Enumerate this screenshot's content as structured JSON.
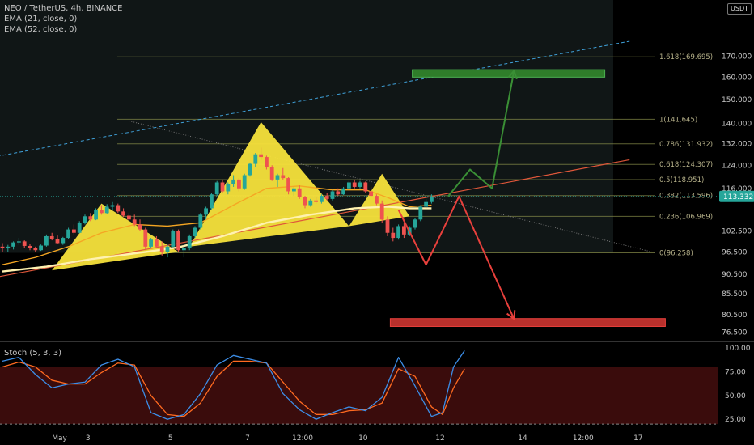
{
  "legend": {
    "symbol": "NEO / TetherUS, 4h, BINANCE",
    "ema1": "EMA (21, close, 0)",
    "ema2": "EMA (52, close, 0)"
  },
  "currency": "USDT",
  "stoch_title": "Stoch (5, 3, 3)",
  "colors": {
    "up": "#26a69a",
    "down": "#ef5350",
    "pattern": "#f7e13b",
    "ema21": "#f5a623",
    "ema52": "#fff2b0",
    "arrow_up": "#3a8f35",
    "arrow_down": "#e8403c",
    "trendline": "#e0573a",
    "channel": "#3fa0d8",
    "fib": "#8a8f4a",
    "stoch_k": "#3c8ee8",
    "stoch_d": "#ff6a20",
    "stoch_band": "#3a0c0c"
  },
  "chart_data": [
    {
      "type": "line",
      "title": "NEO / TetherUS, 4h, BINANCE",
      "scale": "log",
      "ylim": [
        74.5,
        200
      ],
      "y_ticks": [
        {
          "v": 170,
          "label": "170.000"
        },
        {
          "v": 160,
          "label": "160.000"
        },
        {
          "v": 150,
          "label": "150.000"
        },
        {
          "v": 140,
          "label": "140.000"
        },
        {
          "v": 132,
          "label": "132.000"
        },
        {
          "v": 124,
          "label": "124.000"
        },
        {
          "v": 116,
          "label": "116.000"
        },
        {
          "v": 102.5,
          "label": "102.500"
        },
        {
          "v": 96.5,
          "label": "96.500"
        },
        {
          "v": 90.5,
          "label": "90.500"
        },
        {
          "v": 85.5,
          "label": "85.500"
        },
        {
          "v": 80.5,
          "label": "80.500"
        },
        {
          "v": 76.5,
          "label": "76.500"
        }
      ],
      "x_ticks": [
        "May",
        "3",
        "5",
        "7",
        "12:00",
        "10",
        "12",
        "14",
        "12:00",
        "17"
      ],
      "last_price": {
        "value": 113.332,
        "label": "113.332"
      },
      "fib_levels": [
        {
          "value": 169.695,
          "label": "1.618(169.695)"
        },
        {
          "value": 141.645,
          "label": "1(141.645)"
        },
        {
          "value": 131.932,
          "label": "0.786(131.932)"
        },
        {
          "value": 124.307,
          "label": "0.618(124.307)"
        },
        {
          "value": 118.951,
          "label": "0.5(118.951)"
        },
        {
          "value": 113.596,
          "label": "0.382(113.596)"
        },
        {
          "value": 106.969,
          "label": "0.236(106.969)"
        },
        {
          "value": 96.258,
          "label": "0(96.258)"
        }
      ],
      "candles": [
        [
          98.0,
          99.0,
          96.5,
          97.5
        ],
        [
          97.5,
          98.5,
          96.6,
          98.0
        ],
        [
          98.0,
          99.5,
          97.2,
          99.2
        ],
        [
          99.2,
          100.5,
          98.5,
          99.5
        ],
        [
          99.5,
          99.8,
          97.5,
          98.2
        ],
        [
          98.2,
          98.8,
          97.0,
          97.6
        ],
        [
          97.6,
          98.0,
          96.5,
          97.0
        ],
        [
          97.0,
          98.6,
          96.8,
          98.3
        ],
        [
          98.3,
          101.5,
          98.0,
          101.0
        ],
        [
          101.0,
          102.0,
          99.8,
          100.2
        ],
        [
          100.2,
          101.2,
          98.8,
          99.0
        ],
        [
          99.0,
          100.8,
          98.5,
          100.5
        ],
        [
          100.5,
          103.5,
          100.2,
          103.0
        ],
        [
          103.0,
          104.5,
          101.5,
          102.0
        ],
        [
          102.0,
          105.5,
          101.8,
          105.0
        ],
        [
          105.0,
          107.5,
          104.5,
          107.0
        ],
        [
          107.0,
          108.0,
          105.5,
          106.0
        ],
        [
          106.0,
          109.5,
          105.8,
          109.0
        ],
        [
          109.0,
          110.5,
          107.5,
          108.0
        ],
        [
          108.0,
          110.8,
          107.8,
          110.0
        ],
        [
          110.0,
          111.5,
          109.0,
          110.5
        ],
        [
          110.5,
          111.0,
          108.0,
          108.5
        ],
        [
          108.5,
          109.5,
          106.8,
          107.2
        ],
        [
          107.2,
          108.0,
          105.5,
          106.0
        ],
        [
          106.0,
          107.5,
          104.0,
          104.5
        ],
        [
          104.5,
          106.0,
          102.5,
          103.0
        ],
        [
          103.0,
          103.5,
          97.0,
          98.0
        ],
        [
          98.0,
          100.5,
          97.5,
          100.0
        ],
        [
          100.0,
          101.0,
          97.5,
          98.0
        ],
        [
          98.0,
          99.5,
          95.5,
          96.5
        ],
        [
          96.5,
          98.5,
          95.0,
          98.0
        ],
        [
          98.0,
          103.0,
          97.8,
          102.5
        ],
        [
          102.5,
          103.0,
          96.5,
          97.0
        ],
        [
          97.0,
          98.5,
          95.0,
          97.5
        ],
        [
          97.5,
          101.5,
          97.0,
          101.0
        ],
        [
          101.0,
          104.0,
          100.5,
          103.5
        ],
        [
          103.5,
          108.0,
          103.0,
          107.5
        ],
        [
          107.5,
          110.0,
          106.0,
          109.5
        ],
        [
          109.5,
          114.5,
          109.0,
          114.0
        ],
        [
          114.0,
          118.5,
          113.5,
          118.0
        ],
        [
          118.0,
          119.0,
          114.5,
          115.0
        ],
        [
          115.0,
          118.0,
          114.0,
          117.5
        ],
        [
          117.5,
          120.5,
          116.5,
          119.0
        ],
        [
          119.0,
          119.5,
          115.0,
          116.0
        ],
        [
          116.0,
          121.0,
          115.5,
          120.5
        ],
        [
          120.5,
          125.0,
          120.0,
          124.5
        ],
        [
          124.5,
          128.5,
          123.5,
          128.0
        ],
        [
          128.0,
          130.5,
          126.0,
          127.0
        ],
        [
          127.0,
          127.5,
          122.5,
          123.5
        ],
        [
          123.5,
          124.0,
          118.5,
          119.0
        ],
        [
          119.0,
          121.0,
          116.5,
          120.5
        ],
        [
          120.5,
          123.0,
          119.0,
          119.5
        ],
        [
          119.5,
          119.8,
          114.0,
          115.0
        ],
        [
          115.0,
          116.5,
          113.5,
          116.0
        ],
        [
          116.0,
          117.0,
          112.5,
          113.0
        ],
        [
          113.0,
          113.5,
          109.5,
          110.5
        ],
        [
          110.5,
          112.5,
          110.0,
          112.0
        ],
        [
          112.0,
          113.0,
          111.0,
          111.5
        ],
        [
          111.5,
          114.0,
          111.0,
          113.5
        ],
        [
          113.5,
          114.5,
          112.0,
          112.5
        ],
        [
          112.5,
          115.5,
          112.0,
          115.0
        ],
        [
          115.0,
          116.0,
          113.5,
          114.0
        ],
        [
          114.0,
          116.5,
          113.8,
          116.0
        ],
        [
          116.0,
          118.5,
          115.5,
          118.0
        ],
        [
          118.0,
          119.0,
          116.0,
          116.5
        ],
        [
          116.5,
          118.5,
          116.0,
          118.0
        ],
        [
          118.0,
          118.3,
          114.5,
          115.0
        ],
        [
          115.0,
          116.5,
          113.0,
          113.5
        ],
        [
          113.5,
          114.0,
          110.5,
          111.0
        ],
        [
          111.0,
          112.0,
          105.0,
          106.0
        ],
        [
          106.0,
          107.0,
          101.0,
          102.0
        ],
        [
          102.0,
          103.5,
          99.5,
          100.5
        ],
        [
          100.5,
          104.5,
          100.0,
          104.0
        ],
        [
          104.0,
          105.0,
          100.5,
          101.5
        ],
        [
          101.5,
          104.0,
          101.0,
          103.5
        ],
        [
          103.5,
          106.5,
          103.0,
          106.0
        ],
        [
          106.0,
          110.5,
          105.5,
          110.0
        ],
        [
          110.0,
          112.5,
          109.5,
          111.5
        ],
        [
          111.5,
          114.0,
          111.0,
          113.332
        ]
      ],
      "ema21": [
        [
          0,
          93.0
        ],
        [
          6,
          95.0
        ],
        [
          12,
          98.0
        ],
        [
          18,
          102.0
        ],
        [
          24,
          104.5
        ],
        [
          30,
          104.0
        ],
        [
          36,
          105.0
        ],
        [
          42,
          110.5
        ],
        [
          48,
          116.0
        ],
        [
          54,
          116.8
        ],
        [
          60,
          115.5
        ],
        [
          66,
          115.5
        ],
        [
          70,
          113.0
        ],
        [
          74,
          110.0
        ],
        [
          78,
          110.5
        ]
      ],
      "ema52": [
        [
          0,
          91.2
        ],
        [
          8,
          92.5
        ],
        [
          16,
          94.5
        ],
        [
          26,
          96.5
        ],
        [
          32,
          97.8
        ],
        [
          40,
          101.0
        ],
        [
          48,
          105.0
        ],
        [
          56,
          107.5
        ],
        [
          64,
          109.5
        ],
        [
          70,
          110.0
        ],
        [
          74,
          109.5
        ],
        [
          78,
          109.5
        ]
      ],
      "pattern_triangles": [
        [
          [
            9,
            91.5
          ],
          [
            18,
            111.0
          ],
          [
            32,
            96.5
          ]
        ],
        [
          [
            34,
            98.0
          ],
          [
            47,
            140.5
          ],
          [
            63,
            104.0
          ]
        ],
        [
          [
            63,
            104.0
          ],
          [
            69,
            121.0
          ],
          [
            74,
            107.0
          ]
        ]
      ],
      "projection_up": [
        [
          81,
          113.332
        ],
        [
          85,
          122.5
        ],
        [
          89,
          116.0
        ],
        [
          93,
          163.0
        ]
      ],
      "projection_down": [
        [
          72,
          109.0
        ],
        [
          77,
          93.0
        ],
        [
          83,
          113.332
        ],
        [
          93,
          79.5
        ]
      ],
      "target_zones": [
        {
          "name": "upper",
          "from_x": 74.5,
          "to_x": 109.5,
          "from_y": 160.0,
          "to_y": 163.5
        },
        {
          "name": "lower",
          "from_x": 70.5,
          "to_x": 120.5,
          "from_y": 77.8,
          "to_y": 79.6
        }
      ],
      "trendline": [
        [
          -5,
          88.7
        ],
        [
          114,
          126.0
        ]
      ],
      "channel_line": [
        [
          -5,
          125.8
        ],
        [
          114,
          177.5
        ]
      ]
    },
    {
      "type": "line",
      "title": "Stoch (5, 3, 3)",
      "ylim": [
        15,
        105
      ],
      "y_ticks": [
        {
          "v": 100,
          "label": "100.00"
        },
        {
          "v": 75,
          "label": "75.00"
        },
        {
          "v": 50,
          "label": "50.00"
        },
        {
          "v": 25,
          "label": "25.00"
        }
      ],
      "bands": [
        20,
        80
      ],
      "series": [
        {
          "name": "%K",
          "values": [
            [
              0,
              86
            ],
            [
              3,
              90
            ],
            [
              6,
              72
            ],
            [
              9,
              58
            ],
            [
              12,
              62
            ],
            [
              15,
              64
            ],
            [
              18,
              82
            ],
            [
              21,
              88
            ],
            [
              24,
              80
            ],
            [
              27,
              32
            ],
            [
              30,
              25
            ],
            [
              33,
              30
            ],
            [
              36,
              52
            ],
            [
              39,
              82
            ],
            [
              42,
              92
            ],
            [
              45,
              88
            ],
            [
              48,
              84
            ],
            [
              51,
              52
            ],
            [
              54,
              35
            ],
            [
              57,
              25
            ],
            [
              60,
              32
            ],
            [
              63,
              38
            ],
            [
              66,
              34
            ],
            [
              69,
              48
            ],
            [
              72,
              90
            ],
            [
              75,
              60
            ],
            [
              78,
              28
            ],
            [
              80,
              32
            ],
            [
              82,
              80
            ],
            [
              84,
              97
            ]
          ]
        },
        {
          "name": "%D",
          "values": [
            [
              0,
              80
            ],
            [
              3,
              85
            ],
            [
              6,
              80
            ],
            [
              9,
              66
            ],
            [
              12,
              62
            ],
            [
              15,
              62
            ],
            [
              18,
              74
            ],
            [
              21,
              84
            ],
            [
              24,
              82
            ],
            [
              27,
              50
            ],
            [
              30,
              30
            ],
            [
              33,
              28
            ],
            [
              36,
              42
            ],
            [
              39,
              70
            ],
            [
              42,
              86
            ],
            [
              45,
              86
            ],
            [
              48,
              84
            ],
            [
              51,
              64
            ],
            [
              54,
              44
            ],
            [
              57,
              30
            ],
            [
              60,
              30
            ],
            [
              63,
              34
            ],
            [
              66,
              35
            ],
            [
              69,
              42
            ],
            [
              72,
              78
            ],
            [
              75,
              70
            ],
            [
              78,
              38
            ],
            [
              80,
              30
            ],
            [
              82,
              58
            ],
            [
              84,
              78
            ]
          ]
        }
      ]
    }
  ]
}
